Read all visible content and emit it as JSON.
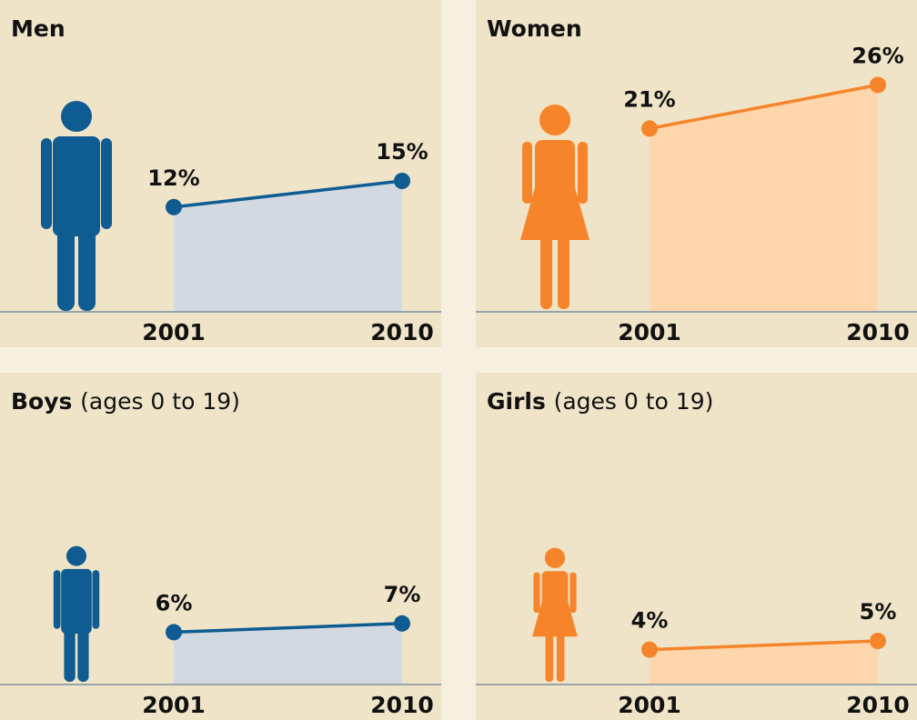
{
  "chart_data": [
    {
      "type": "area",
      "title": "Men",
      "categories": [
        "2001",
        "2010"
      ],
      "values": [
        12,
        15
      ],
      "value_labels": [
        "12%",
        "15%"
      ],
      "color": "#0e5c91",
      "fill": "#d3d9e1",
      "ylim": [
        0,
        30
      ]
    },
    {
      "type": "area",
      "title": "Women",
      "categories": [
        "2001",
        "2010"
      ],
      "values": [
        21,
        26
      ],
      "value_labels": [
        "21%",
        "26%"
      ],
      "color": "#f5842a",
      "fill": "#fdd6ab",
      "ylim": [
        0,
        30
      ]
    },
    {
      "type": "area",
      "title": "Boys",
      "subtitle": "(ages 0 to 19)",
      "categories": [
        "2001",
        "2010"
      ],
      "values": [
        6,
        7
      ],
      "value_labels": [
        "6%",
        "7%"
      ],
      "color": "#0e5c91",
      "fill": "#d3d9e1",
      "ylim": [
        0,
        30
      ]
    },
    {
      "type": "area",
      "title": "Girls",
      "subtitle": "(ages 0 to 19)",
      "categories": [
        "2001",
        "2010"
      ],
      "values": [
        4,
        5
      ],
      "value_labels": [
        "4%",
        "5%"
      ],
      "color": "#f5842a",
      "fill": "#fdd6ab",
      "ylim": [
        0,
        30
      ]
    }
  ]
}
